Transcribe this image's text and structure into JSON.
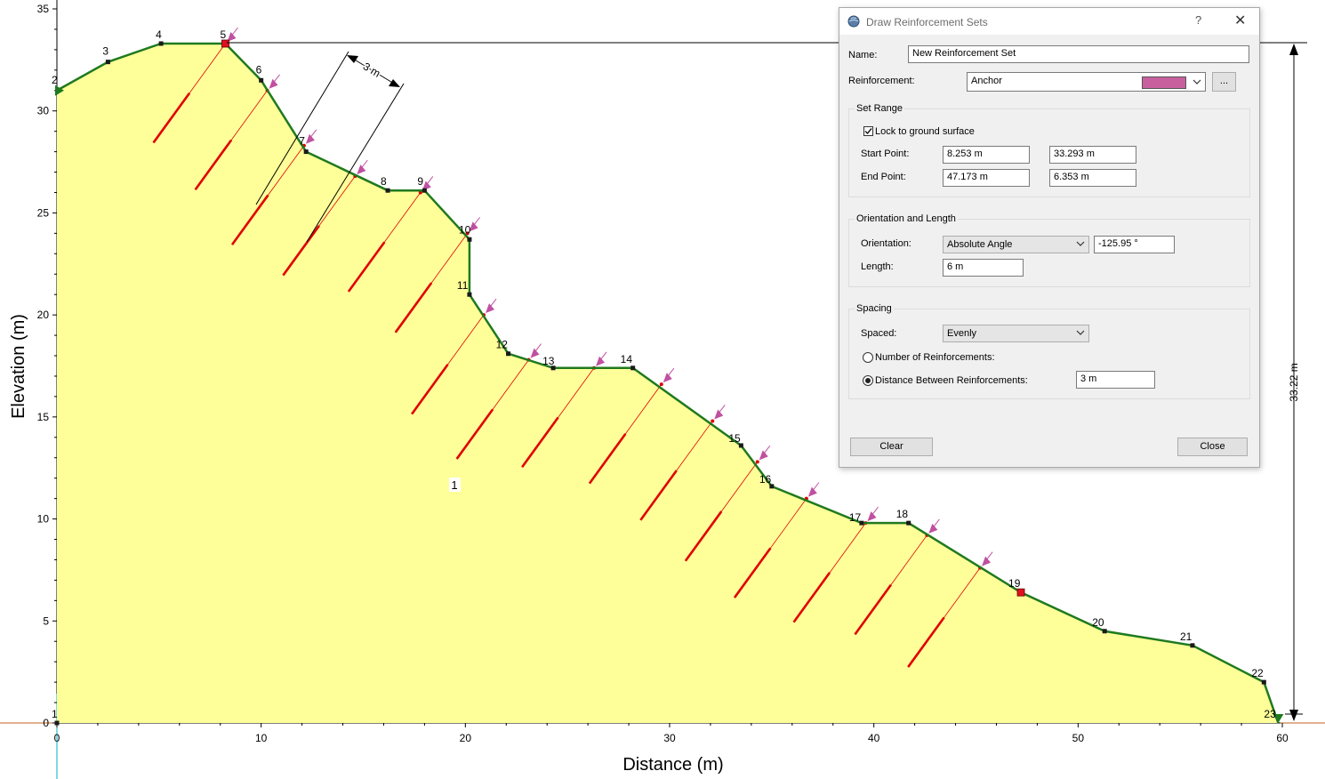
{
  "plot": {
    "x_axis_label": "Distance (m)",
    "y_axis_label": "Elevation (m)",
    "x_ticks": [
      "0",
      "10",
      "20",
      "30",
      "40",
      "50",
      "60"
    ],
    "y_ticks": [
      "0",
      "5",
      "10",
      "15",
      "20",
      "25",
      "30",
      "35"
    ],
    "x_range": [
      0,
      60
    ],
    "y_range": [
      0,
      35
    ],
    "material_label": "1",
    "height_dimension_label": "33.22 m",
    "spacing_dimension_label": "3 m",
    "colors": {
      "slope_fill": "#ffff99",
      "boundary": "#1f7a1f",
      "anchor": "#e00000",
      "anchor_head": "#c050a0",
      "vertex": "#1a1a1a",
      "selected_vertex": "#e01020"
    },
    "vertices": [
      {
        "id": "1",
        "x": 0,
        "y": 0
      },
      {
        "id": "2",
        "x": 0,
        "y": 31
      },
      {
        "id": "3",
        "x": 2.5,
        "y": 32.4
      },
      {
        "id": "4",
        "x": 5.1,
        "y": 33.3
      },
      {
        "id": "5",
        "x": 8.25,
        "y": 33.3
      },
      {
        "id": "6",
        "x": 10,
        "y": 31.5
      },
      {
        "id": "7",
        "x": 12.2,
        "y": 28
      },
      {
        "id": "8",
        "x": 16.2,
        "y": 26.1
      },
      {
        "id": "9",
        "x": 18,
        "y": 26.1
      },
      {
        "id": "10",
        "x": 20.2,
        "y": 23.7
      },
      {
        "id": "11",
        "x": 20.2,
        "y": 21
      },
      {
        "id": "12",
        "x": 22.1,
        "y": 18.1
      },
      {
        "id": "13",
        "x": 24.3,
        "y": 17.4
      },
      {
        "id": "14",
        "x": 28.2,
        "y": 17.4
      },
      {
        "id": "15",
        "x": 33.5,
        "y": 13.6
      },
      {
        "id": "16",
        "x": 35,
        "y": 11.6
      },
      {
        "id": "17",
        "x": 39.4,
        "y": 9.8
      },
      {
        "id": "18",
        "x": 41.7,
        "y": 9.8
      },
      {
        "id": "19",
        "x": 47.2,
        "y": 6.4
      },
      {
        "id": "20",
        "x": 51.3,
        "y": 4.5
      },
      {
        "id": "21",
        "x": 55.6,
        "y": 3.8
      },
      {
        "id": "22",
        "x": 59.1,
        "y": 2
      },
      {
        "id": "23",
        "x": 59.8,
        "y": 0
      }
    ],
    "anchor_heads": [
      {
        "x": 8.25,
        "y": 33.3
      },
      {
        "x": 10.3,
        "y": 31
      },
      {
        "x": 12.1,
        "y": 28.3
      },
      {
        "x": 14.6,
        "y": 26.8
      },
      {
        "x": 17.8,
        "y": 26
      },
      {
        "x": 20.1,
        "y": 24
      },
      {
        "x": 20.9,
        "y": 20
      },
      {
        "x": 23.1,
        "y": 17.8
      },
      {
        "x": 26.3,
        "y": 17.4
      },
      {
        "x": 29.6,
        "y": 16.6
      },
      {
        "x": 32.1,
        "y": 14.8
      },
      {
        "x": 34.3,
        "y": 12.8
      },
      {
        "x": 36.7,
        "y": 11
      },
      {
        "x": 39.6,
        "y": 9.8
      },
      {
        "x": 42.6,
        "y": 9.2
      },
      {
        "x": 45.2,
        "y": 7.6
      }
    ],
    "anchor_angle_deg": -125.95,
    "anchor_length": 6
  },
  "dialog": {
    "title": "Draw Reinforcement Sets",
    "help": "?",
    "close_glyph": "✕",
    "name_label": "Name:",
    "name_value": "New Reinforcement Set",
    "reinforcement_label": "Reinforcement:",
    "reinforcement_value": "Anchor",
    "reinforcement_color": "#c8609e",
    "more_button": "...",
    "set_range": {
      "title": "Set Range",
      "lock_label": "Lock to ground surface",
      "lock_checked": true,
      "start_label": "Start Point:",
      "start_x": "8.253 m",
      "start_y": "33.293 m",
      "end_label": "End Point:",
      "end_x": "47.173 m",
      "end_y": "6.353 m"
    },
    "orientation": {
      "title": "Orientation and Length",
      "orientation_label": "Orientation:",
      "orientation_mode": "Absolute Angle",
      "angle_value": "-125.95 °",
      "length_label": "Length:",
      "length_value": "6 m"
    },
    "spacing": {
      "title": "Spacing",
      "spaced_label": "Spaced:",
      "spaced_value": "Evenly",
      "number_label": "Number of Reinforcements:",
      "distance_label": "Distance Between Reinforcements:",
      "distance_value": "3 m",
      "selected": "distance"
    },
    "clear_button": "Clear",
    "close_button": "Close"
  }
}
